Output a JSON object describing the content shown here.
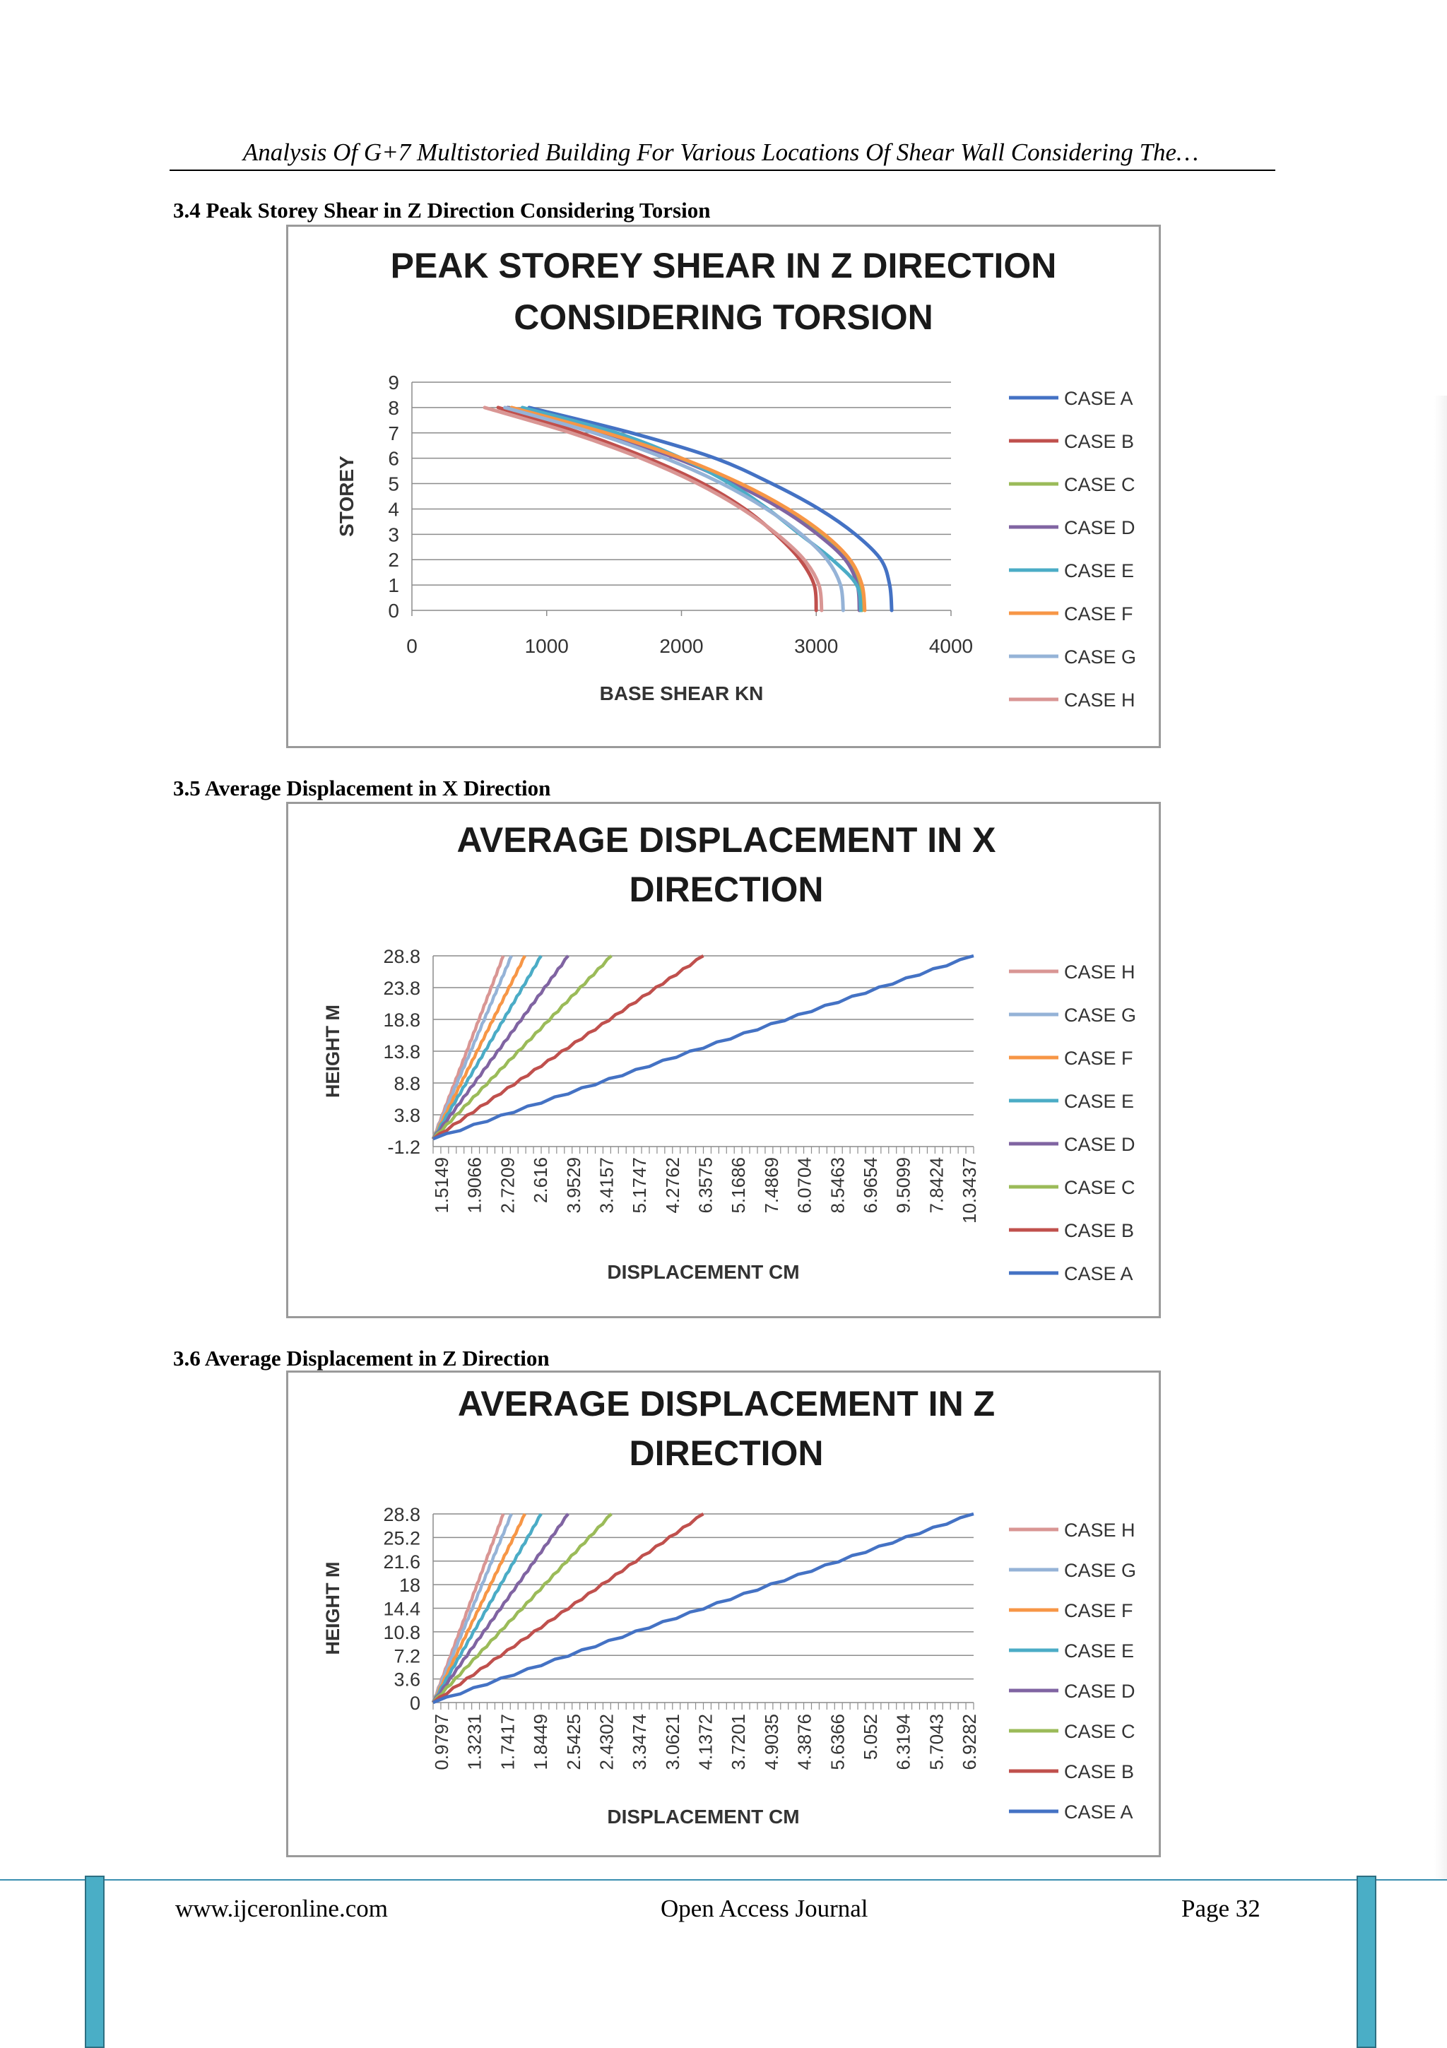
{
  "header": {
    "running_title": "Analysis Of G+7 Multistoried Building For Various Locations Of Shear Wall Considering The…"
  },
  "sections": [
    {
      "label": "3.4  Peak Storey Shear in Z Direction Considering Torsion"
    },
    {
      "label": "3.5  Average Displacement in X Direction"
    },
    {
      "label": "3.6  Average Displacement in Z Direction"
    }
  ],
  "chart_data": [
    {
      "type": "line",
      "title": "PEAK STOREY SHEAR IN Z DIRECTION CONSIDERING TORSION",
      "title_lines": [
        "PEAK STOREY SHEAR IN Z DIRECTION",
        "CONSIDERING TORSION"
      ],
      "xlabel": "BASE SHEAR KN",
      "ylabel": "STOREY",
      "xlim": [
        0,
        4000
      ],
      "ylim": [
        0,
        9
      ],
      "x_ticks": [
        "0",
        "1000",
        "2000",
        "3000",
        "4000"
      ],
      "y_ticks": [
        "0",
        "1",
        "2",
        "3",
        "4",
        "5",
        "6",
        "7",
        "8",
        "9"
      ],
      "grid": true,
      "legend_position": "right",
      "series": [
        {
          "name": "CASE A",
          "color": "#4472c4",
          "x": [
            3560,
            3545,
            3480,
            3290,
            3020,
            2670,
            2250,
            1630,
            870
          ],
          "y": [
            0,
            1,
            2,
            3,
            4,
            5,
            6,
            7,
            8
          ]
        },
        {
          "name": "CASE B",
          "color": "#c0504d",
          "x": [
            3000,
            2985,
            2880,
            2700,
            2470,
            2160,
            1750,
            1250,
            640
          ],
          "y": [
            0,
            1,
            2,
            3,
            4,
            5,
            6,
            7,
            8
          ]
        },
        {
          "name": "CASE C",
          "color": "#9bbb59",
          "x": [
            3340,
            3325,
            3240,
            3040,
            2770,
            2420,
            1980,
            1420,
            720
          ],
          "y": [
            0,
            1,
            2,
            3,
            4,
            5,
            6,
            7,
            8
          ]
        },
        {
          "name": "CASE D",
          "color": "#8064a2",
          "x": [
            3320,
            3305,
            3215,
            3010,
            2740,
            2390,
            1960,
            1400,
            710
          ],
          "y": [
            0,
            1,
            2,
            3,
            4,
            5,
            6,
            7,
            8
          ]
        },
        {
          "name": "CASE E",
          "color": "#4bacc6",
          "x": [
            3330,
            3300,
            3120,
            2880,
            2640,
            2360,
            2000,
            1520,
            820
          ],
          "y": [
            0,
            1,
            2,
            3,
            4,
            5,
            6,
            7,
            8
          ]
        },
        {
          "name": "CASE F",
          "color": "#f79646",
          "x": [
            3360,
            3340,
            3250,
            3060,
            2790,
            2440,
            2000,
            1440,
            740
          ],
          "y": [
            0,
            1,
            2,
            3,
            4,
            5,
            6,
            7,
            8
          ]
        },
        {
          "name": "CASE G",
          "color": "#95b3d7",
          "x": [
            3200,
            3180,
            3080,
            2890,
            2630,
            2300,
            1880,
            1350,
            690
          ],
          "y": [
            0,
            1,
            2,
            3,
            4,
            5,
            6,
            7,
            8
          ]
        },
        {
          "name": "CASE H",
          "color": "#d99694",
          "x": [
            3040,
            3020,
            2910,
            2710,
            2450,
            2120,
            1700,
            1180,
            540
          ],
          "y": [
            0,
            1,
            2,
            3,
            4,
            5,
            6,
            7,
            8
          ]
        }
      ]
    },
    {
      "type": "line",
      "title": "AVERAGE DISPLACEMENT IN X DIRECTION",
      "title_lines": [
        "AVERAGE DISPLACEMENT IN X",
        "DIRECTION"
      ],
      "xlabel": "DISPLACEMENT CM",
      "ylabel": "HEIGHT M",
      "ylim": [
        -1.2,
        28.8
      ],
      "y_ticks": [
        "28.8",
        "23.8",
        "18.8",
        "13.8",
        "8.8",
        "3.8",
        "-1.2"
      ],
      "x_tick_labels": [
        "1.5149",
        "1.9066",
        "2.7209",
        "2.616",
        "3.9529",
        "3.4157",
        "5.1747",
        "4.2762",
        "6.3575",
        "5.1686",
        "7.4869",
        "6.0704",
        "8.5463",
        "6.9654",
        "9.5099",
        "7.8424",
        "10.3437"
      ],
      "grid": true,
      "legend_position": "right",
      "series": [
        {
          "name": "CASE H",
          "color": "#d99694",
          "x_end_fraction": 0.13,
          "y": [
            0,
            28.8
          ]
        },
        {
          "name": "CASE G",
          "color": "#95b3d7",
          "x_end_fraction": 0.145,
          "y": [
            0,
            28.8
          ]
        },
        {
          "name": "CASE F",
          "color": "#f79646",
          "x_end_fraction": 0.17,
          "y": [
            0,
            28.8
          ]
        },
        {
          "name": "CASE E",
          "color": "#4bacc6",
          "x_end_fraction": 0.2,
          "y": [
            0,
            28.8
          ]
        },
        {
          "name": "CASE D",
          "color": "#8064a2",
          "x_end_fraction": 0.25,
          "y": [
            0,
            28.8
          ]
        },
        {
          "name": "CASE C",
          "color": "#9bbb59",
          "x_end_fraction": 0.33,
          "y": [
            0,
            28.8
          ]
        },
        {
          "name": "CASE B",
          "color": "#c0504d",
          "x_end_fraction": 0.5,
          "y": [
            0,
            28.8
          ]
        },
        {
          "name": "CASE A",
          "color": "#4472c4",
          "x_end_fraction": 1.0,
          "y": [
            0,
            28.8
          ]
        }
      ]
    },
    {
      "type": "line",
      "title": "AVERAGE DISPLACEMENT IN Z DIRECTION",
      "title_lines": [
        "AVERAGE DISPLACEMENT IN Z",
        "DIRECTION"
      ],
      "xlabel": "DISPLACEMENT CM",
      "ylabel": "HEIGHT M",
      "ylim": [
        0,
        28.8
      ],
      "y_ticks": [
        "28.8",
        "25.2",
        "21.6",
        "18",
        "14.4",
        "10.8",
        "7.2",
        "3.6",
        "0"
      ],
      "x_tick_labels": [
        "0.9797",
        "1.3231",
        "1.7417",
        "1.8449",
        "2.5425",
        "2.4302",
        "3.3474",
        "3.0621",
        "4.1372",
        "3.7201",
        "4.9035",
        "4.3876",
        "5.6366",
        "5.052",
        "6.3194",
        "5.7043",
        "6.9282"
      ],
      "grid": true,
      "legend_position": "right",
      "series": [
        {
          "name": "CASE H",
          "color": "#d99694",
          "x_end_fraction": 0.13,
          "y": [
            0,
            28.8
          ]
        },
        {
          "name": "CASE G",
          "color": "#95b3d7",
          "x_end_fraction": 0.145,
          "y": [
            0,
            28.8
          ]
        },
        {
          "name": "CASE F",
          "color": "#f79646",
          "x_end_fraction": 0.17,
          "y": [
            0,
            28.8
          ]
        },
        {
          "name": "CASE E",
          "color": "#4bacc6",
          "x_end_fraction": 0.2,
          "y": [
            0,
            28.8
          ]
        },
        {
          "name": "CASE D",
          "color": "#8064a2",
          "x_end_fraction": 0.25,
          "y": [
            0,
            28.8
          ]
        },
        {
          "name": "CASE C",
          "color": "#9bbb59",
          "x_end_fraction": 0.33,
          "y": [
            0,
            28.8
          ]
        },
        {
          "name": "CASE B",
          "color": "#c0504d",
          "x_end_fraction": 0.5,
          "y": [
            0,
            28.8
          ]
        },
        {
          "name": "CASE A",
          "color": "#4472c4",
          "x_end_fraction": 1.0,
          "y": [
            0,
            28.8
          ]
        }
      ]
    }
  ],
  "footer": {
    "website": "www.ijceronline.com",
    "journal": "Open Access Journal",
    "page": "Page 32"
  }
}
